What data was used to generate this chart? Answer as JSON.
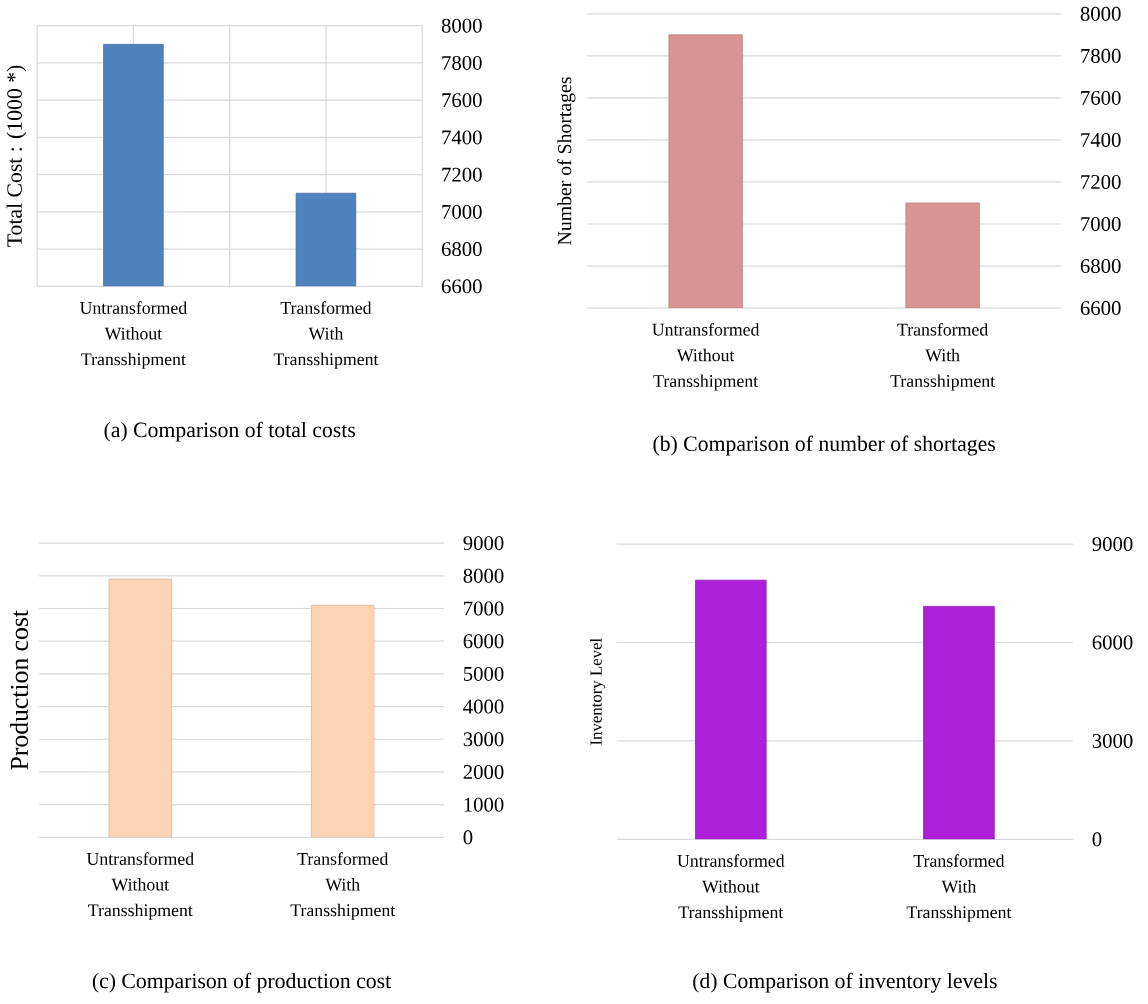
{
  "chart_data": [
    {
      "type": "bar",
      "title": "(a) Comparison of total costs",
      "ylabel": "Total Cost : (1000 *)",
      "categories": [
        "Untransformed Without Transshipment",
        "Transformed With Transshipment"
      ],
      "values": [
        7900,
        7100
      ],
      "color": "#4f81bd",
      "ylim": [
        6600,
        8000
      ],
      "yticks": [
        6600,
        6800,
        7000,
        7200,
        7400,
        7600,
        7800,
        8000
      ],
      "grid": true
    },
    {
      "type": "bar",
      "title": "(b) Comparison of number of shortages",
      "ylabel": "Number of Shortages",
      "categories": [
        "Untransformed Without Transshipment",
        "Transformed With Transshipment"
      ],
      "values": [
        7900,
        7100
      ],
      "color": "#d99594",
      "ylim": [
        6600,
        8000
      ],
      "yticks": [
        6600,
        6800,
        7000,
        7200,
        7400,
        7600,
        7800,
        8000
      ],
      "grid": "y"
    },
    {
      "type": "bar",
      "title": "(c) Comparison of production cost",
      "ylabel": "Production cost",
      "categories": [
        "Untransformed Without Transshipment",
        "Transformed With Transshipment"
      ],
      "values": [
        7900,
        7100
      ],
      "color": "#fbd4b4",
      "ylim": [
        0,
        9000
      ],
      "yticks": [
        0,
        1000,
        2000,
        3000,
        4000,
        5000,
        6000,
        7000,
        8000,
        9000
      ],
      "grid": "y"
    },
    {
      "type": "bar",
      "title": "(d) Comparison of inventory levels",
      "ylabel": "Inventory Level",
      "categories": [
        "Untransformed Without Transshipment",
        "Transformed With Transshipment"
      ],
      "values": [
        7900,
        7100
      ],
      "color": "#ad1fd9",
      "ylim": [
        0,
        9000
      ],
      "yticks": [
        0,
        3000,
        6000,
        9000
      ],
      "grid": "y"
    }
  ]
}
